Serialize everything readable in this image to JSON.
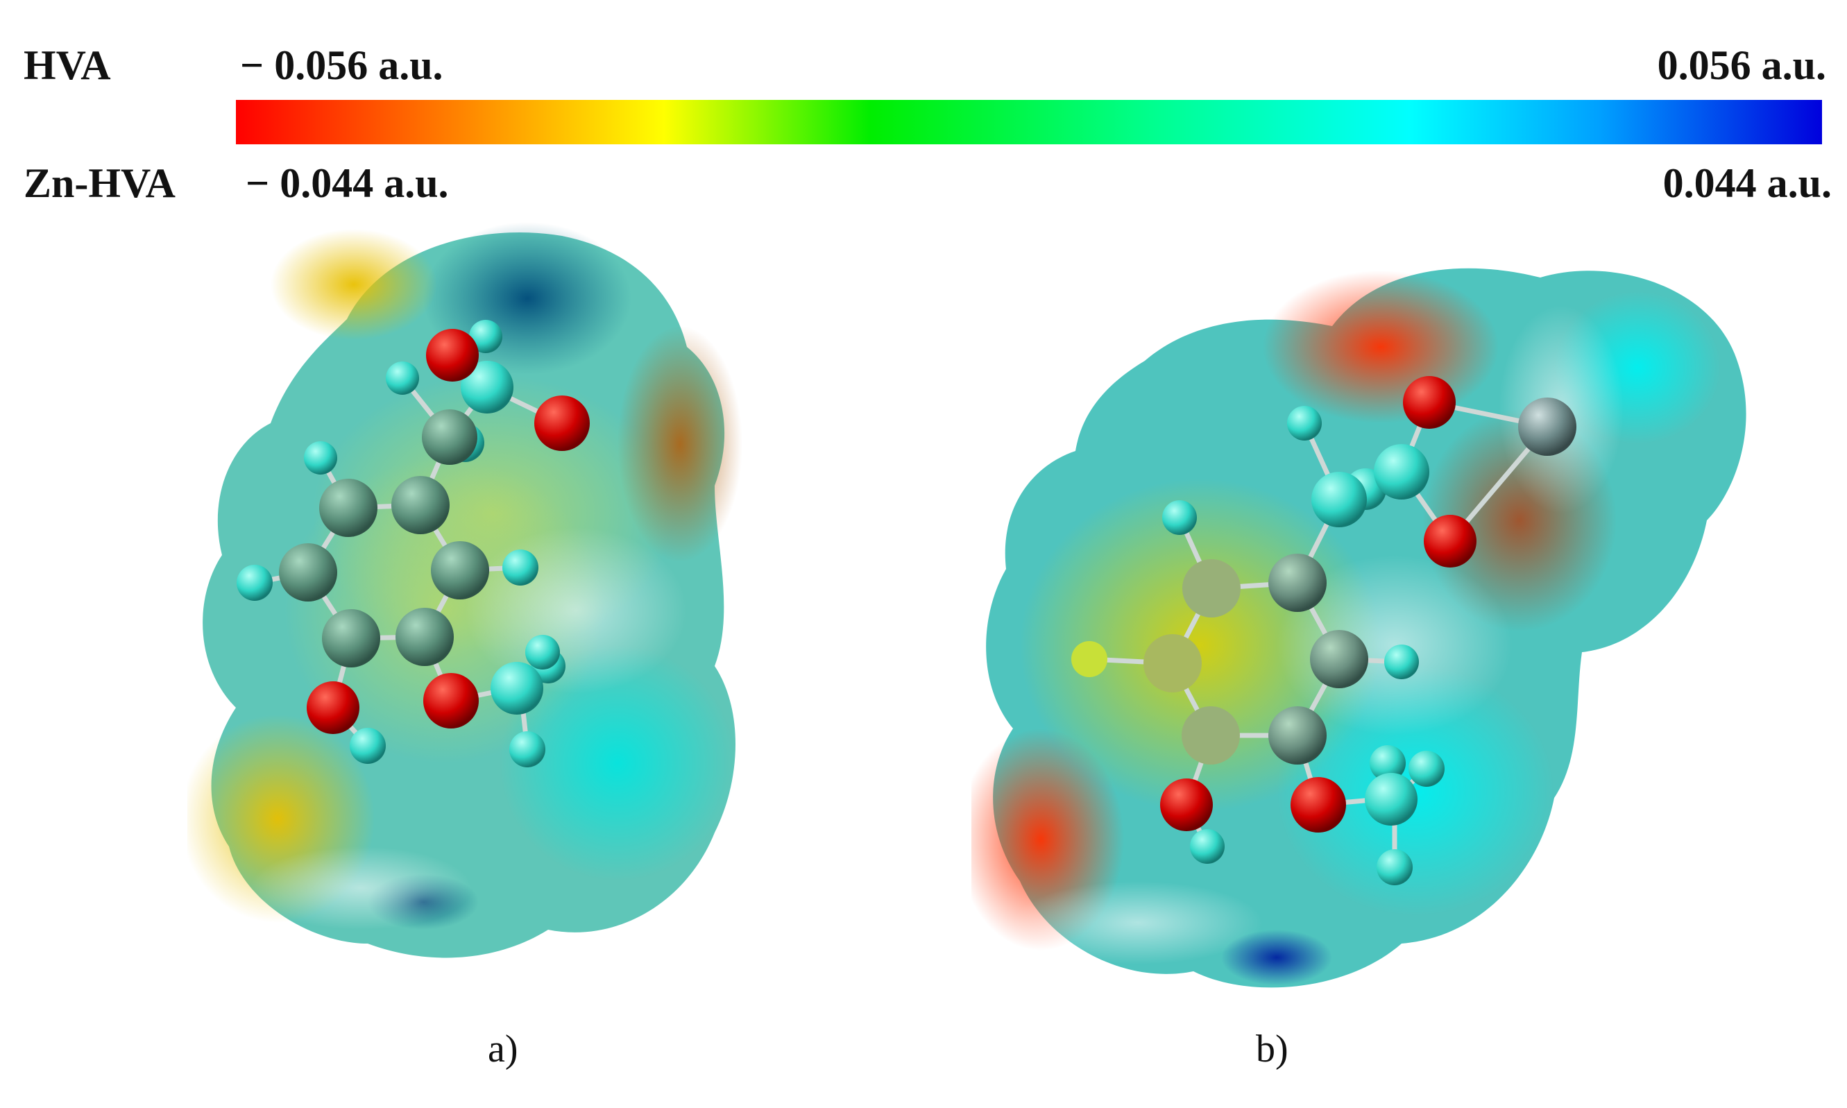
{
  "scale": {
    "hva_label": "HVA",
    "hva_min": "− 0.056 a.u.",
    "hva_max": "0.056 a.u.",
    "znhva_label": "Zn-HVA",
    "znhva_min": "− 0.044 a.u.",
    "znhva_max": "0.044 a.u.",
    "gradient_colors": [
      "#ff0000",
      "#ff8c00",
      "#ffff00",
      "#00ff00",
      "#00ff90",
      "#00ffff",
      "#00a0ff",
      "#0000dd"
    ]
  },
  "panels": [
    {
      "caption": "a)",
      "molecule": "HVA"
    },
    {
      "caption": "b)",
      "molecule": "Zn-HVA"
    }
  ],
  "atom_colors": {
    "oxygen": "#e00000",
    "hydrogen": "#40e0d0",
    "carbon": "#5a8f7a",
    "zinc": "#6e8a8a"
  }
}
